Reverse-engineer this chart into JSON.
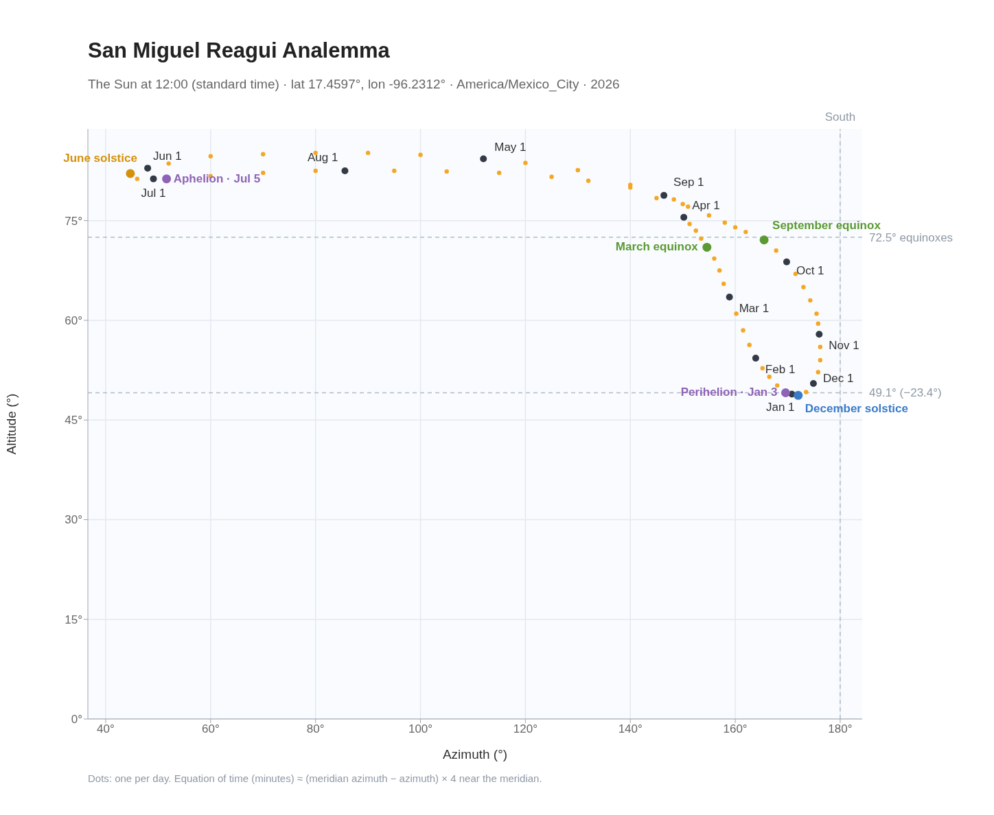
{
  "chart_data": {
    "type": "scatter",
    "title": "San Miguel Reagui Analemma",
    "subtitle": "The Sun at 12:00 (standard time) · lat 17.4597°, lon -96.2312° · America/Mexico_City · 2026",
    "xlabel": "Azimuth (°)",
    "ylabel": "Altitude (°)",
    "xlim": [
      36.6,
      184.2
    ],
    "ylim": [
      0,
      88.8
    ],
    "xticks": [
      {
        "value": 40,
        "label": "40°"
      },
      {
        "value": 60,
        "label": "60°"
      },
      {
        "value": 80,
        "label": "80°"
      },
      {
        "value": 100,
        "label": "100°"
      },
      {
        "value": 120,
        "label": "120°"
      },
      {
        "value": 140,
        "label": "140°"
      },
      {
        "value": 160,
        "label": "160°"
      },
      {
        "value": 180,
        "label": "180°"
      }
    ],
    "yticks": [
      {
        "value": 0,
        "label": "0°"
      },
      {
        "value": 15,
        "label": "15°"
      },
      {
        "value": 30,
        "label": "30°"
      },
      {
        "value": 45,
        "label": "45°"
      },
      {
        "value": 60,
        "label": "60°"
      },
      {
        "value": 75,
        "label": "75°"
      }
    ],
    "grid": true,
    "marker": "circle",
    "series": [
      {
        "color": "#f5a623",
        "x": [
          168,
          166.5,
          165.2,
          162.7,
          161.5,
          160.2,
          157.8,
          157,
          156,
          153.5,
          152.5,
          151.3,
          145,
          140,
          130,
          120,
          100,
          90,
          80,
          70,
          60,
          52,
          46,
          60,
          70,
          80,
          95,
          105,
          115,
          125,
          132,
          140,
          148.3,
          150,
          151,
          155,
          158,
          160,
          162,
          167.8,
          171.5,
          173,
          174.3,
          175.5,
          175.8,
          176.2,
          176.2,
          175.8,
          173.5
        ],
        "values": [
          50.2,
          51.5,
          52.8,
          56.3,
          58.5,
          61,
          65.5,
          67.5,
          69.3,
          72.3,
          73.5,
          74.5,
          78.4,
          80.4,
          82.6,
          83.7,
          84.9,
          85.2,
          85.2,
          85,
          84.7,
          83.6,
          81.3,
          81.7,
          82.2,
          82.5,
          82.5,
          82.4,
          82.2,
          81.6,
          81,
          80,
          78.2,
          77.5,
          77.1,
          75.8,
          74.7,
          74,
          73.3,
          70.5,
          67,
          65,
          63,
          61,
          59.5,
          56,
          54,
          52.2,
          49.2
        ]
      },
      {
        "color": "#333a45",
        "x": [
          170.8,
          163.9,
          158.9,
          150.2,
          112,
          48,
          49.1,
          85.6,
          146.4,
          169.8,
          176,
          174.9
        ],
        "values": [
          48.9,
          54.3,
          63.5,
          75.5,
          84.3,
          82.9,
          81.3,
          82.5,
          78.8,
          68.8,
          57.9,
          50.5
        ]
      },
      {
        "name": "Aphelion · Jul 5",
        "color": "#8e63b5",
        "x": [
          51.6
        ],
        "values": [
          81.3
        ]
      },
      {
        "name": "June solstice",
        "color": "#d4920c",
        "x": [
          44.7
        ],
        "values": [
          82.1
        ]
      },
      {
        "name": "March equinox",
        "color": "#5b9a32",
        "x": [
          154.6
        ],
        "values": [
          71
        ]
      },
      {
        "name": "September equinox",
        "color": "#5b9a32",
        "x": [
          165.5
        ],
        "values": [
          72.1
        ]
      },
      {
        "name": "Perihelion · Jan 3",
        "color": "#8e63b5",
        "x": [
          169.6
        ],
        "values": [
          49.1
        ]
      },
      {
        "name": "December solstice",
        "color": "#3a7bc8",
        "x": [
          172
        ],
        "values": [
          48.7
        ]
      }
    ],
    "ref_lines": [
      {
        "axis": "y",
        "value": 72.5,
        "label": "72.5° equinoxes",
        "color": "#b0bcc8",
        "line_style": "dashed"
      },
      {
        "axis": "y",
        "value": 49.1,
        "label": "49.1° (−23.4°)",
        "color": "#b0bcc8",
        "line_style": "dashed"
      },
      {
        "axis": "x",
        "value": 180,
        "label": "South",
        "color": "#b0bcc8",
        "line_style": "dashed"
      }
    ],
    "annotations": [
      "Dots: one per day. Equation of time (minutes) ≈ (meridian azimuth − azimuth) × 4 near the meridian.",
      {
        "text": "Jan 1",
        "x": 170.8,
        "y": 48.9
      },
      {
        "text": "Feb 1",
        "x": 163.9,
        "y": 54.3
      },
      {
        "text": "Mar 1",
        "x": 158.9,
        "y": 63.5
      },
      {
        "text": "Apr 1",
        "x": 150.2,
        "y": 75.5
      },
      {
        "text": "May 1",
        "x": 112,
        "y": 84.3
      },
      {
        "text": "Jun 1",
        "x": 48,
        "y": 82.9
      },
      {
        "text": "Jul 1",
        "x": 49.1,
        "y": 81.3
      },
      {
        "text": "Aug 1",
        "x": 85.6,
        "y": 82.5
      },
      {
        "text": "Sep 1",
        "x": 146.4,
        "y": 78.8
      },
      {
        "text": "Oct 1",
        "x": 169.8,
        "y": 68.8
      },
      {
        "text": "Nov 1",
        "x": 176,
        "y": 57.9
      },
      {
        "text": "Dec 1",
        "x": 174.9,
        "y": 50.5
      }
    ]
  }
}
